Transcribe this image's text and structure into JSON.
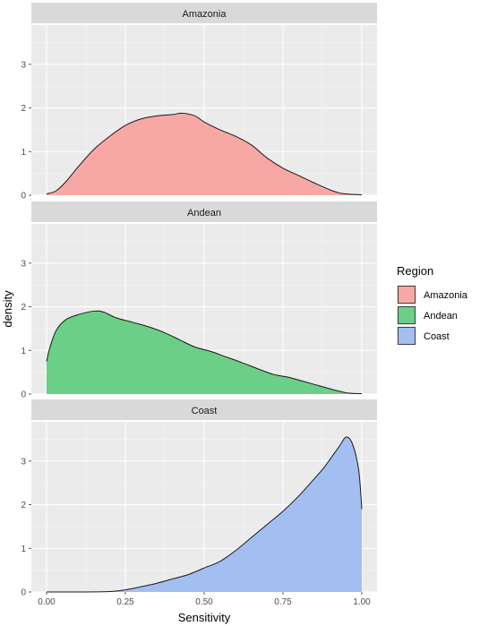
{
  "chart_data": {
    "type": "area",
    "xlabel": "Sensitivity",
    "ylabel": "density",
    "xlim": [
      0,
      1
    ],
    "ylim": [
      0,
      3.9
    ],
    "x_ticks": [
      0,
      0.25,
      0.5,
      0.75,
      1
    ],
    "x_tick_labels": [
      "0.00",
      "0.25",
      "0.50",
      "0.75",
      "1.00"
    ],
    "y_ticks": [
      0,
      1,
      2,
      3
    ],
    "y_tick_labels": [
      "0",
      "1",
      "2",
      "3"
    ],
    "grid": true,
    "facet_wrap": "vertical",
    "legend": {
      "title": "Region",
      "placement": "right",
      "entries": [
        {
          "label": "Amazonia",
          "color": "#F8A8A4"
        },
        {
          "label": "Andean",
          "color": "#6BCF87"
        },
        {
          "label": "Coast",
          "color": "#A3BFF2"
        }
      ]
    },
    "panels": [
      {
        "strip": "Amazonia",
        "fill": "#F8A8A4",
        "x": [
          0.0,
          0.03,
          0.06,
          0.1,
          0.15,
          0.2,
          0.25,
          0.3,
          0.35,
          0.4,
          0.43,
          0.47,
          0.5,
          0.55,
          0.6,
          0.65,
          0.7,
          0.75,
          0.8,
          0.85,
          0.9,
          0.93,
          0.95,
          0.97,
          1.0
        ],
        "y": [
          0.03,
          0.1,
          0.3,
          0.65,
          1.05,
          1.35,
          1.6,
          1.75,
          1.82,
          1.85,
          1.88,
          1.82,
          1.68,
          1.5,
          1.35,
          1.15,
          0.85,
          0.62,
          0.45,
          0.28,
          0.12,
          0.05,
          0.03,
          0.02,
          0.01
        ]
      },
      {
        "strip": "Andean",
        "fill": "#6BCF87",
        "x": [
          0.0,
          0.01,
          0.03,
          0.06,
          0.1,
          0.15,
          0.18,
          0.22,
          0.27,
          0.32,
          0.37,
          0.42,
          0.47,
          0.52,
          0.57,
          0.62,
          0.67,
          0.72,
          0.77,
          0.82,
          0.87,
          0.92,
          0.96,
          1.0
        ],
        "y": [
          0.75,
          1.05,
          1.45,
          1.7,
          1.82,
          1.9,
          1.88,
          1.75,
          1.65,
          1.55,
          1.42,
          1.25,
          1.08,
          0.98,
          0.85,
          0.72,
          0.58,
          0.45,
          0.38,
          0.28,
          0.18,
          0.08,
          0.02,
          0.01
        ]
      },
      {
        "strip": "Coast",
        "fill": "#A3BFF2",
        "x": [
          0.0,
          0.1,
          0.2,
          0.25,
          0.3,
          0.35,
          0.4,
          0.45,
          0.5,
          0.55,
          0.6,
          0.65,
          0.7,
          0.75,
          0.8,
          0.85,
          0.88,
          0.9,
          0.93,
          0.95,
          0.97,
          0.99,
          1.0
        ],
        "y": [
          0.0,
          0.0,
          0.01,
          0.05,
          0.12,
          0.2,
          0.3,
          0.4,
          0.55,
          0.7,
          0.95,
          1.25,
          1.55,
          1.85,
          2.2,
          2.6,
          2.85,
          3.05,
          3.35,
          3.55,
          3.4,
          2.8,
          1.9
        ]
      }
    ]
  }
}
